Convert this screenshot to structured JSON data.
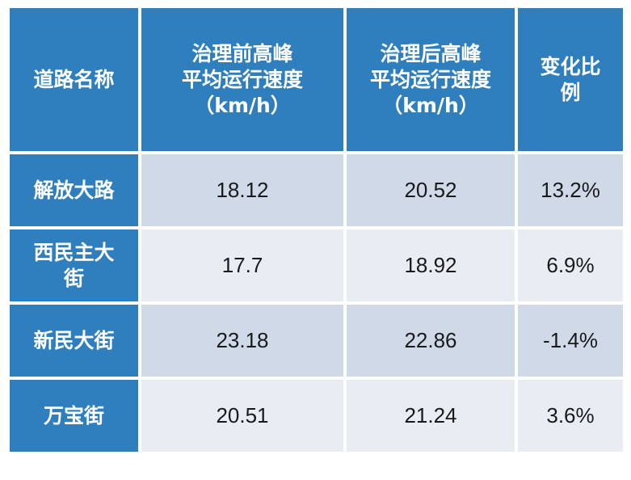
{
  "chart_data": {
    "type": "table",
    "columns": [
      [
        "道路名称"
      ],
      [
        "治理前高峰",
        "平均运行速度",
        "（km/h）"
      ],
      [
        "治理后高峰",
        "平均运行速度",
        "（km/h）"
      ],
      [
        "变化比",
        "例"
      ]
    ],
    "rows": [
      {
        "name": [
          "解放大路"
        ],
        "before": "18.12",
        "after": "20.52",
        "change": "13.2%"
      },
      {
        "name": [
          "西民主大",
          "街"
        ],
        "before": "17.7",
        "after": "18.92",
        "change": "6.9%"
      },
      {
        "name": [
          "新民大街"
        ],
        "before": "23.18",
        "after": "22.86",
        "change": "-1.4%"
      },
      {
        "name": [
          "万宝街"
        ],
        "before": "20.51",
        "after": "21.24",
        "change": "3.6%"
      }
    ],
    "colors": {
      "header": "#2f7fbf",
      "row_odd": "#cfd9e8",
      "row_even": "#e8edf4"
    }
  }
}
